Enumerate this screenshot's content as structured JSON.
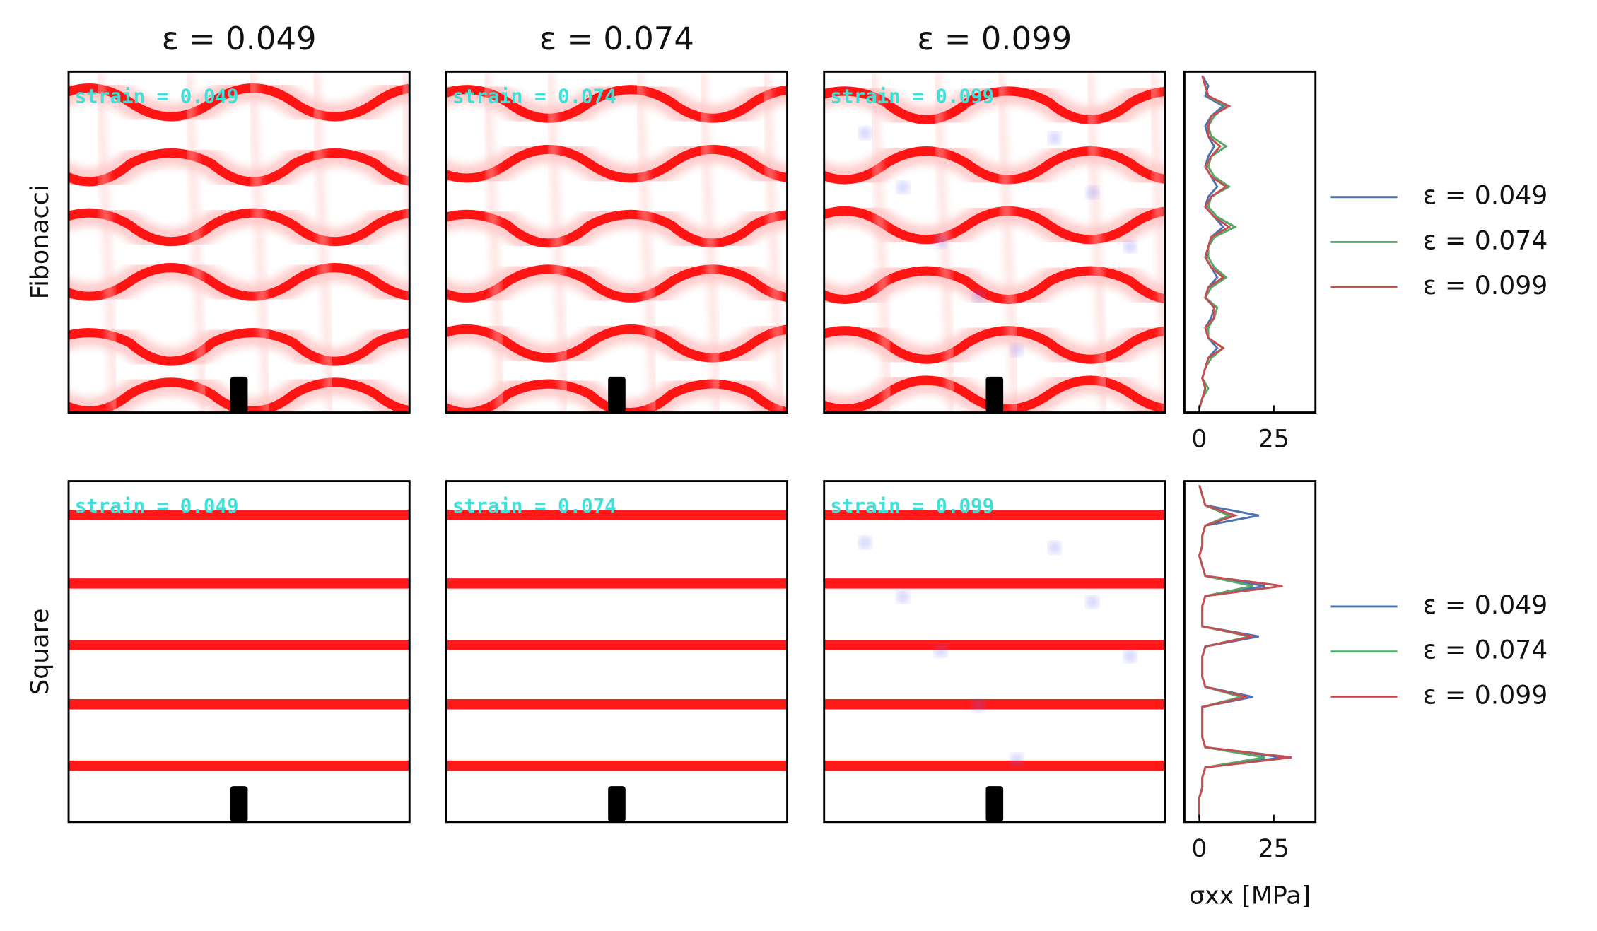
{
  "column_titles": [
    "ε = 0.049",
    "ε = 0.074",
    "ε = 0.099"
  ],
  "row_labels": [
    "Fibonacci",
    "Square"
  ],
  "strain_labels": [
    "strain = 0.049",
    "strain = 0.074",
    "strain = 0.099"
  ],
  "chart_data": [
    {
      "type": "line",
      "orientation": "vertical",
      "xlim": [
        -5,
        39
      ],
      "xticks": [
        0,
        25
      ],
      "legend": "right",
      "series": [
        {
          "name": "ε = 0.049",
          "color": "#4c72b0",
          "values": [
            1,
            3,
            2,
            8,
            4,
            2,
            3,
            5,
            3,
            2,
            4,
            6,
            3,
            2,
            5,
            8,
            4,
            3,
            2,
            4,
            6,
            3,
            2,
            5,
            4,
            2,
            3,
            6,
            3,
            2,
            1,
            2,
            1,
            0
          ]
        },
        {
          "name": "ε = 0.074",
          "color": "#55a868",
          "values": [
            1,
            2,
            3,
            9,
            5,
            3,
            4,
            9,
            4,
            3,
            5,
            10,
            4,
            3,
            6,
            12,
            5,
            3,
            3,
            5,
            9,
            4,
            2,
            6,
            5,
            3,
            3,
            8,
            4,
            2,
            1,
            3,
            1,
            0
          ]
        },
        {
          "name": "ε = 0.099",
          "color": "#c44e52",
          "values": [
            1,
            2,
            3,
            10,
            4,
            3,
            3,
            7,
            4,
            2,
            4,
            9,
            4,
            2,
            5,
            10,
            4,
            3,
            2,
            4,
            8,
            3,
            2,
            5,
            5,
            2,
            3,
            8,
            3,
            2,
            1,
            2,
            1,
            0
          ]
        }
      ]
    },
    {
      "type": "line",
      "orientation": "vertical",
      "xlim": [
        -5,
        39
      ],
      "xticks": [
        0,
        25
      ],
      "legend": "right",
      "xlabel": "σxx [MPa]",
      "series": [
        {
          "name": "ε = 0.049",
          "color": "#4c72b0",
          "values": [
            0,
            1,
            2,
            20,
            2,
            1,
            1,
            0,
            1,
            2,
            22,
            2,
            1,
            1,
            1,
            20,
            2,
            1,
            1,
            1,
            2,
            18,
            1,
            1,
            1,
            1,
            2,
            28,
            2,
            1,
            1,
            0,
            0,
            0
          ]
        },
        {
          "name": "ε = 0.074",
          "color": "#55a868",
          "values": [
            0,
            1,
            2,
            10,
            2,
            1,
            1,
            0,
            1,
            2,
            18,
            2,
            1,
            1,
            1,
            17,
            2,
            1,
            1,
            1,
            2,
            14,
            1,
            1,
            1,
            1,
            2,
            22,
            2,
            1,
            1,
            0,
            0,
            0
          ]
        },
        {
          "name": "ε = 0.099",
          "color": "#c44e52",
          "values": [
            0,
            1,
            2,
            12,
            2,
            1,
            1,
            0,
            1,
            2,
            28,
            2,
            1,
            1,
            1,
            18,
            2,
            1,
            1,
            1,
            2,
            16,
            1,
            1,
            1,
            1,
            2,
            31,
            2,
            1,
            1,
            0,
            0,
            0
          ]
        }
      ]
    }
  ]
}
